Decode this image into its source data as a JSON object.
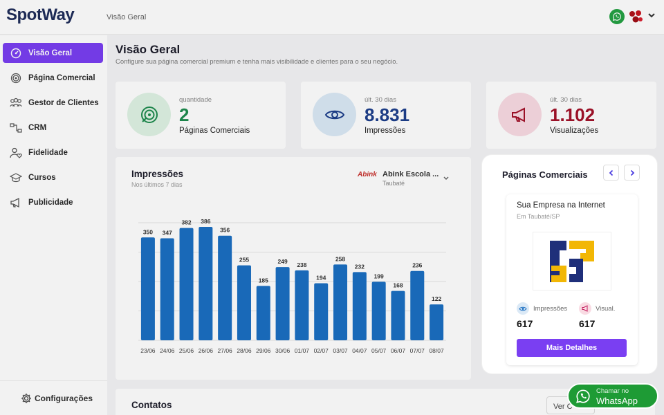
{
  "app": {
    "logo": "SpotWay",
    "breadcrumb": "Visão Geral"
  },
  "sidebar": {
    "items": [
      {
        "label": "Visão Geral",
        "icon": "dashboard-icon"
      },
      {
        "label": "Página Comercial",
        "icon": "fingerprint-icon"
      },
      {
        "label": "Gestor de Clientes",
        "icon": "users-icon"
      },
      {
        "label": "CRM",
        "icon": "crm-icon"
      },
      {
        "label": "Fidelidade",
        "icon": "user-heart-icon"
      },
      {
        "label": "Cursos",
        "icon": "graduation-cap-icon"
      },
      {
        "label": "Publicidade",
        "icon": "megaphone-icon"
      }
    ],
    "settings_label": "Configurações"
  },
  "header": {
    "title": "Visão Geral",
    "subtitle": "Configure sua página comercial premium e tenha mais visibilidade e clientes para o seu negócio."
  },
  "stats": [
    {
      "label": "quantidade",
      "value": "2",
      "desc": "Páginas Comerciais",
      "color": "#1e8c4e"
    },
    {
      "label": "últ. 30 dias",
      "value": "8.831",
      "desc": "Impressões",
      "color": "#1d3f8c"
    },
    {
      "label": "últ. 30 dias",
      "value": "1.102",
      "desc": "Visualizações",
      "color": "#a3122a"
    }
  ],
  "impressions": {
    "title": "Impressões",
    "subtitle": "Nos últimos 7 dias",
    "business": {
      "logo_text": "Abink",
      "name": "Abink Escola ...",
      "city": "Taubaté"
    }
  },
  "chart_data": {
    "type": "bar",
    "categories": [
      "23/06",
      "24/06",
      "25/06",
      "26/06",
      "27/06",
      "28/06",
      "29/06",
      "30/06",
      "01/07",
      "02/07",
      "03/07",
      "04/07",
      "05/07",
      "06/07",
      "07/07",
      "08/07"
    ],
    "values": [
      350,
      347,
      382,
      386,
      356,
      255,
      185,
      249,
      238,
      194,
      258,
      232,
      199,
      168,
      236,
      122
    ],
    "ylim": [
      0,
      400
    ],
    "color": "#1b6fc2"
  },
  "contacts": {
    "title": "Contatos",
    "button": "Ver C"
  },
  "panel": {
    "title": "Páginas Comerciais",
    "business_name": "Sua Empresa na Internet",
    "business_city": "Em Taubaté/SP",
    "impressions_label": "Impressões",
    "impressions_value": "617",
    "views_label": "Visual.",
    "views_value": "617",
    "details_button": "Mais Detalhes"
  },
  "whatsapp": {
    "line1": "Chamar no",
    "line2": "WhatsApp"
  }
}
